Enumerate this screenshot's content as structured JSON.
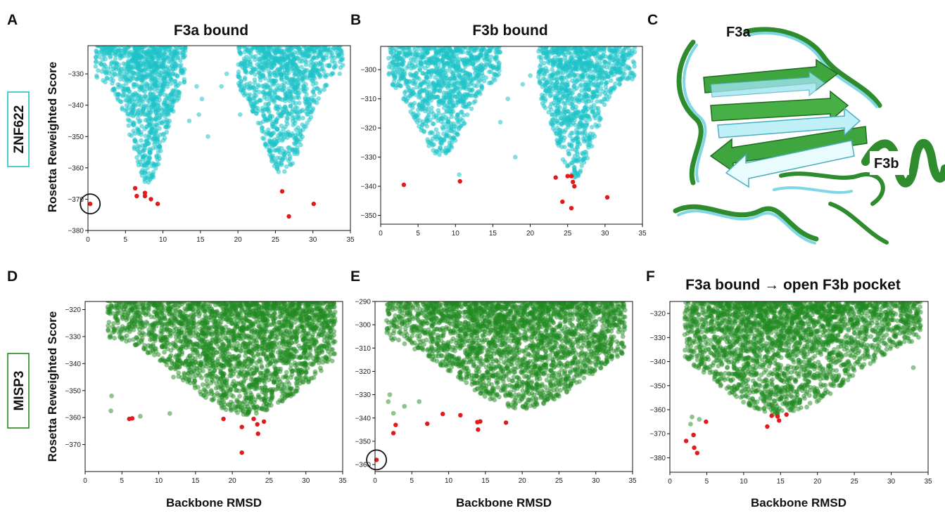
{
  "colors": {
    "znf622": "#1ec3c8",
    "misp3": "#1f8a1f",
    "highlight": "#e31a1c",
    "struct_cyan": "#7fd7e6",
    "struct_green": "#2e8b2e"
  },
  "row_labels": {
    "top": "ZNF622",
    "bottom": "MISP3"
  },
  "panel_c": {
    "letter": "C",
    "label_a": "F3a",
    "label_b": "F3b"
  },
  "chart_data": [
    {
      "id": "A",
      "letter": "A",
      "type": "scatter",
      "title": "F3a bound",
      "ylabel": "Rosetta Reweighted Score",
      "xlabel": "",
      "xlim": [
        0,
        35
      ],
      "ylim": [
        -380,
        -321
      ],
      "xticks": [
        0,
        5,
        10,
        15,
        20,
        25,
        30,
        35
      ],
      "yticks": [
        -330,
        -340,
        -350,
        -360,
        -370,
        -380
      ],
      "cloud": {
        "color_key": "znf622",
        "clusters": [
          {
            "xmin": 1,
            "xmax": 13,
            "peak_x": 8,
            "half_width": 2.2,
            "floor": -365
          },
          {
            "xmin": 20,
            "xmax": 34,
            "peak_x": 26,
            "half_width": 2.8,
            "floor": -362
          }
        ],
        "sparse": [
          [
            14.5,
            -334
          ],
          [
            15.2,
            -338
          ],
          [
            14.8,
            -343
          ],
          [
            17.8,
            -334
          ],
          [
            16,
            -350
          ],
          [
            20.3,
            -343
          ],
          [
            13.5,
            -345
          ],
          [
            18.5,
            -330
          ]
        ]
      },
      "highlight": [
        [
          0.3,
          -371.5
        ],
        [
          6.3,
          -366.5
        ],
        [
          6.5,
          -369
        ],
        [
          7.6,
          -368
        ],
        [
          7.6,
          -369
        ],
        [
          8.4,
          -370
        ],
        [
          9.3,
          -371.5
        ],
        [
          25.9,
          -367.5
        ],
        [
          26.8,
          -375.5
        ],
        [
          30.1,
          -371.5
        ]
      ],
      "circle": [
        0.3,
        -371.5
      ]
    },
    {
      "id": "B",
      "letter": "B",
      "type": "scatter",
      "title": "F3b bound",
      "ylabel": "",
      "xlabel": "",
      "xlim": [
        0,
        35
      ],
      "ylim": [
        -353,
        -292
      ],
      "xticks": [
        0,
        5,
        10,
        15,
        20,
        25,
        30,
        35
      ],
      "yticks": [
        -300,
        -310,
        -320,
        -330,
        -340,
        -350
      ],
      "cloud": {
        "color_key": "znf622",
        "clusters": [
          {
            "xmin": 1,
            "xmax": 16,
            "peak_x": 8,
            "half_width": 3.2,
            "floor": -330
          },
          {
            "xmin": 21,
            "xmax": 34,
            "peak_x": 26,
            "half_width": 2.6,
            "floor": -337
          }
        ],
        "sparse": [
          [
            18,
            -330
          ],
          [
            17,
            -310
          ],
          [
            19,
            -305
          ],
          [
            20,
            -302
          ],
          [
            10.5,
            -336
          ],
          [
            16,
            -318
          ]
        ]
      },
      "highlight": [
        [
          3.1,
          -339.5
        ],
        [
          10.6,
          -338.3
        ],
        [
          23.4,
          -337
        ],
        [
          24.3,
          -345.3
        ],
        [
          25,
          -336.5
        ],
        [
          25.5,
          -336.5
        ],
        [
          25.7,
          -338.5
        ],
        [
          25.9,
          -340
        ],
        [
          25.5,
          -347.5
        ],
        [
          30.3,
          -343.8
        ]
      ],
      "circle": null
    },
    {
      "id": "D",
      "letter": "D",
      "type": "scatter",
      "title": "",
      "ylabel": "Rosetta Reweighted Score",
      "xlabel": "Backbone RMSD",
      "xlim": [
        0,
        35
      ],
      "ylim": [
        -380,
        -317
      ],
      "xticks": [
        0,
        5,
        10,
        15,
        20,
        25,
        30,
        35
      ],
      "yticks": [
        -320,
        -330,
        -340,
        -350,
        -360,
        -370
      ],
      "cloud": {
        "color_key": "misp3",
        "clusters": [
          {
            "xmin": 3,
            "xmax": 34,
            "peak_x": 22,
            "half_width": 8.5,
            "floor": -359
          }
        ],
        "sparse": [
          [
            3.5,
            -357.5
          ],
          [
            3.6,
            -352
          ],
          [
            7.5,
            -359.5
          ],
          [
            11.5,
            -358.5
          ],
          [
            12,
            -345
          ]
        ]
      },
      "highlight": [
        [
          6,
          -360.5
        ],
        [
          6.4,
          -360.3
        ],
        [
          18.8,
          -360.5
        ],
        [
          21.3,
          -363.5
        ],
        [
          21.3,
          -373
        ],
        [
          22.9,
          -360.5
        ],
        [
          23.4,
          -362.5
        ],
        [
          23.5,
          -366
        ],
        [
          24.3,
          -361.5
        ]
      ],
      "circle": null
    },
    {
      "id": "E",
      "letter": "E",
      "type": "scatter",
      "title": "",
      "ylabel": "",
      "xlabel": "Backbone RMSD",
      "xlim": [
        0,
        35
      ],
      "ylim": [
        -363,
        -290
      ],
      "xticks": [
        0,
        5,
        10,
        15,
        20,
        25,
        30,
        35
      ],
      "yticks": [
        -290,
        -300,
        -310,
        -320,
        -330,
        -340,
        -350,
        -360
      ],
      "cloud": {
        "color_key": "misp3",
        "clusters": [
          {
            "xmin": 1.5,
            "xmax": 34,
            "peak_x": 20,
            "half_width": 9,
            "floor": -336
          }
        ],
        "sparse": [
          [
            2,
            -330
          ],
          [
            1.8,
            -333
          ],
          [
            2.5,
            -338
          ],
          [
            4,
            -335
          ],
          [
            6,
            -333
          ]
        ]
      },
      "highlight": [
        [
          0.2,
          -358
        ],
        [
          2.5,
          -346.5
        ],
        [
          2.8,
          -343
        ],
        [
          7.1,
          -342.5
        ],
        [
          9.2,
          -338.3
        ],
        [
          11.6,
          -338.8
        ],
        [
          13.9,
          -341.8
        ],
        [
          14.3,
          -341.5
        ],
        [
          14,
          -345
        ],
        [
          17.8,
          -342
        ]
      ],
      "circle": [
        0.2,
        -358
      ]
    },
    {
      "id": "F",
      "letter": "F",
      "type": "scatter",
      "title": "F3a bound → open F3b pocket",
      "ylabel": "",
      "xlabel": "Backbone RMSD",
      "xlim": [
        0,
        35
      ],
      "ylim": [
        -386,
        -315
      ],
      "xticks": [
        0,
        5,
        10,
        15,
        20,
        25,
        30,
        35
      ],
      "yticks": [
        -320,
        -330,
        -340,
        -350,
        -360,
        -370,
        -380
      ],
      "cloud": {
        "color_key": "misp3",
        "clusters": [
          {
            "xmin": 2,
            "xmax": 34,
            "peak_x": 15,
            "half_width": 9,
            "floor": -362
          }
        ],
        "sparse": [
          [
            2.8,
            -366
          ],
          [
            3,
            -363
          ],
          [
            3.2,
            -370.5
          ],
          [
            4,
            -364
          ],
          [
            33,
            -342.5
          ]
        ]
      },
      "highlight": [
        [
          2.2,
          -373
        ],
        [
          3.2,
          -370.5
        ],
        [
          3.3,
          -375.8
        ],
        [
          3.7,
          -378
        ],
        [
          4.9,
          -365
        ],
        [
          13.2,
          -367
        ],
        [
          13.8,
          -362.5
        ],
        [
          14.6,
          -362.8
        ],
        [
          14.8,
          -364.5
        ],
        [
          15.8,
          -362
        ]
      ],
      "circle": null
    }
  ]
}
